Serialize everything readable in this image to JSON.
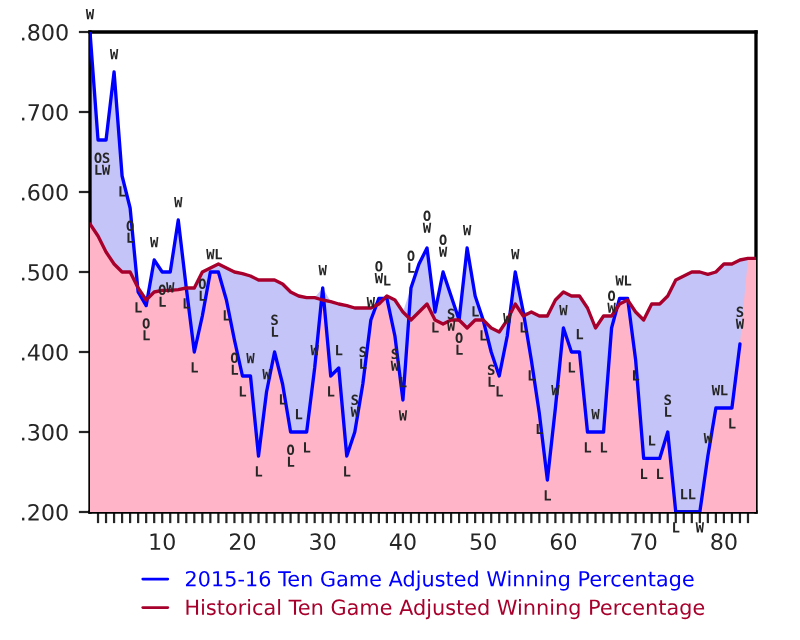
{
  "chart_data": {
    "type": "line",
    "x": [
      1,
      2,
      3,
      4,
      5,
      6,
      7,
      8,
      9,
      10,
      11,
      12,
      13,
      14,
      15,
      16,
      17,
      18,
      19,
      20,
      21,
      22,
      23,
      24,
      25,
      26,
      27,
      28,
      29,
      30,
      31,
      32,
      33,
      34,
      35,
      36,
      37,
      38,
      39,
      40,
      41,
      42,
      43,
      44,
      45,
      46,
      47,
      48,
      49,
      50,
      51,
      52,
      53,
      54,
      55,
      56,
      57,
      58,
      59,
      60,
      61,
      62,
      63,
      64,
      65,
      66,
      67,
      68,
      69,
      70,
      71,
      72,
      73,
      74,
      75,
      76,
      77,
      78,
      79,
      80,
      81,
      82,
      83,
      84
    ],
    "series": [
      {
        "type": "area",
        "color": "#c4c4f8",
        "values": [
          0.8,
          0.665,
          0.665,
          0.75,
          0.62,
          0.58,
          0.48,
          0.465,
          0.515,
          0.5,
          0.5,
          0.565,
          0.48,
          0.48,
          0.5,
          0.505,
          0.51,
          0.505,
          0.5,
          0.498,
          0.495,
          0.49,
          0.49,
          0.49,
          0.485,
          0.475,
          0.47,
          0.468,
          0.468,
          0.48,
          0.463,
          0.46,
          0.458,
          0.455,
          0.455,
          0.455,
          0.467,
          0.47,
          0.465,
          0.45,
          0.48,
          0.51,
          0.53,
          0.45,
          0.5,
          0.47,
          0.44,
          0.53,
          0.47,
          0.44,
          0.43,
          0.425,
          0.44,
          0.5,
          0.45,
          0.45,
          0.445,
          0.445,
          0.465,
          0.475,
          0.47,
          0.47,
          0.455,
          0.43,
          0.445,
          0.445,
          0.467,
          0.467,
          0.45,
          0.44,
          0.46,
          0.46,
          0.47,
          0.49,
          0.495,
          0.5,
          0.5,
          0.497,
          0.5,
          0.51,
          0.51,
          0.515,
          0.517,
          0.517
        ]
      },
      {
        "type": "area",
        "color": "#ffb4c8",
        "values": [
          0.56,
          0.545,
          0.525,
          0.51,
          0.5,
          0.5,
          0.475,
          0.458,
          0.475,
          0.477,
          0.477,
          0.478,
          0.48,
          0.4,
          0.445,
          0.5,
          0.5,
          0.465,
          0.415,
          0.37,
          0.37,
          0.27,
          0.35,
          0.4,
          0.36,
          0.3,
          0.3,
          0.3,
          0.38,
          0.465,
          0.37,
          0.38,
          0.27,
          0.3,
          0.36,
          0.44,
          0.46,
          0.467,
          0.42,
          0.34,
          0.44,
          0.45,
          0.46,
          0.44,
          0.435,
          0.44,
          0.44,
          0.43,
          0.44,
          0.44,
          0.4,
          0.37,
          0.42,
          0.46,
          0.445,
          0.39,
          0.323,
          0.24,
          0.33,
          0.43,
          0.4,
          0.4,
          0.3,
          0.3,
          0.3,
          0.43,
          0.46,
          0.465,
          0.39,
          0.267,
          0.267,
          0.267,
          0.3,
          0.2,
          0.2,
          0.2,
          0.2,
          0.27,
          0.33,
          0.33,
          0.33,
          0.41,
          0.517,
          0.517
        ]
      },
      {
        "name": "2015-16 Ten Game Adjusted Winning Percentage",
        "color": "#0000ff",
        "values": [
          0.8,
          0.665,
          0.665,
          0.75,
          0.62,
          0.58,
          0.475,
          0.458,
          0.515,
          0.5,
          0.5,
          0.565,
          0.48,
          0.4,
          0.445,
          0.5,
          0.5,
          0.465,
          0.415,
          0.37,
          0.37,
          0.27,
          0.35,
          0.4,
          0.36,
          0.3,
          0.3,
          0.3,
          0.38,
          0.48,
          0.37,
          0.38,
          0.27,
          0.3,
          0.36,
          0.44,
          0.467,
          0.467,
          0.42,
          0.34,
          0.48,
          0.51,
          0.53,
          0.45,
          0.5,
          0.47,
          0.44,
          0.53,
          0.47,
          0.44,
          0.4,
          0.37,
          0.42,
          0.5,
          0.45,
          0.39,
          0.323,
          0.24,
          0.33,
          0.43,
          0.4,
          0.4,
          0.3,
          0.3,
          0.3,
          0.43,
          0.467,
          0.467,
          0.39,
          0.267,
          0.267,
          0.267,
          0.3,
          0.2,
          0.2,
          0.2,
          0.2,
          0.27,
          0.33,
          0.33,
          0.33,
          0.41,
          null,
          null
        ]
      },
      {
        "name": "Historical Ten Game Adjusted Winning Percentage",
        "color": "#a8002c",
        "values": [
          0.56,
          0.545,
          0.525,
          0.51,
          0.5,
          0.5,
          0.48,
          0.465,
          0.475,
          0.477,
          0.477,
          0.478,
          0.48,
          0.48,
          0.5,
          0.505,
          0.51,
          0.505,
          0.5,
          0.498,
          0.495,
          0.49,
          0.49,
          0.49,
          0.485,
          0.475,
          0.47,
          0.468,
          0.468,
          0.465,
          0.463,
          0.46,
          0.458,
          0.455,
          0.455,
          0.455,
          0.46,
          0.47,
          0.465,
          0.45,
          0.44,
          0.45,
          0.46,
          0.44,
          0.435,
          0.44,
          0.44,
          0.43,
          0.44,
          0.44,
          0.43,
          0.425,
          0.44,
          0.46,
          0.445,
          0.45,
          0.445,
          0.445,
          0.465,
          0.475,
          0.47,
          0.47,
          0.455,
          0.43,
          0.445,
          0.445,
          0.46,
          0.465,
          0.45,
          0.44,
          0.46,
          0.46,
          0.47,
          0.49,
          0.495,
          0.5,
          0.5,
          0.497,
          0.5,
          0.51,
          0.51,
          0.515,
          0.517,
          0.517
        ]
      }
    ],
    "xlim": [
      1,
      84
    ],
    "xticks": [
      {
        "value": 2,
        "label": null
      },
      {
        "value": 3,
        "label": null
      },
      {
        "value": 4,
        "label": null
      },
      {
        "value": 5,
        "label": null
      },
      {
        "value": 6,
        "label": null
      },
      {
        "value": 7,
        "label": null
      },
      {
        "value": 8,
        "label": null
      },
      {
        "value": 9,
        "label": null
      },
      10,
      {
        "value": 11,
        "label": null
      },
      {
        "value": 12,
        "label": null
      },
      {
        "value": 13,
        "label": null
      },
      {
        "value": 14,
        "label": null
      },
      {
        "value": 15,
        "label": null
      },
      {
        "value": 16,
        "label": null
      },
      {
        "value": 17,
        "label": null
      },
      {
        "value": 18,
        "label": null
      },
      {
        "value": 19,
        "label": null
      },
      20,
      {
        "value": 21,
        "label": null
      },
      {
        "value": 22,
        "label": null
      },
      {
        "value": 23,
        "label": null
      },
      {
        "value": 24,
        "label": null
      },
      {
        "value": 25,
        "label": null
      },
      {
        "value": 26,
        "label": null
      },
      {
        "value": 27,
        "label": null
      },
      {
        "value": 28,
        "label": null
      },
      {
        "value": 29,
        "label": null
      },
      30,
      {
        "value": 31,
        "label": null
      },
      {
        "value": 32,
        "label": null
      },
      {
        "value": 33,
        "label": null
      },
      {
        "value": 34,
        "label": null
      },
      {
        "value": 35,
        "label": null
      },
      {
        "value": 36,
        "label": null
      },
      {
        "value": 37,
        "label": null
      },
      {
        "value": 38,
        "label": null
      },
      {
        "value": 39,
        "label": null
      },
      40,
      {
        "value": 41,
        "label": null
      },
      {
        "value": 42,
        "label": null
      },
      {
        "value": 43,
        "label": null
      },
      {
        "value": 44,
        "label": null
      },
      {
        "value": 45,
        "label": null
      },
      {
        "value": 46,
        "label": null
      },
      {
        "value": 47,
        "label": null
      },
      {
        "value": 48,
        "label": null
      },
      {
        "value": 49,
        "label": null
      },
      50,
      {
        "value": 51,
        "label": null
      },
      {
        "value": 52,
        "label": null
      },
      {
        "value": 53,
        "label": null
      },
      {
        "value": 54,
        "label": null
      },
      {
        "value": 55,
        "label": null
      },
      {
        "value": 56,
        "label": null
      },
      {
        "value": 57,
        "label": null
      },
      {
        "value": 58,
        "label": null
      },
      {
        "value": 59,
        "label": null
      },
      60,
      {
        "value": 61,
        "label": null
      },
      {
        "value": 62,
        "label": null
      },
      {
        "value": 63,
        "label": null
      },
      {
        "value": 64,
        "label": null
      },
      {
        "value": 65,
        "label": null
      },
      {
        "value": 66,
        "label": null
      },
      {
        "value": 67,
        "label": null
      },
      {
        "value": 68,
        "label": null
      },
      {
        "value": 69,
        "label": null
      },
      70,
      {
        "value": 71,
        "label": null
      },
      {
        "value": 72,
        "label": null
      },
      {
        "value": 73,
        "label": null
      },
      {
        "value": 74,
        "label": null
      },
      {
        "value": 75,
        "label": null
      },
      {
        "value": 76,
        "label": null
      },
      {
        "value": 77,
        "label": null
      },
      {
        "value": 78,
        "label": null
      },
      {
        "value": 79,
        "label": null
      },
      80,
      {
        "value": 81,
        "label": null
      },
      {
        "value": 82,
        "label": null
      },
      {
        "value": 83,
        "label": null
      }
    ],
    "ylim": [
      0.2,
      0.8
    ],
    "yticks": [
      {
        "value": 0.2,
        "label": ".200"
      },
      {
        "value": 0.3,
        "label": ".300"
      },
      {
        "value": 0.4,
        "label": ".400"
      },
      {
        "value": 0.5,
        "label": ".500"
      },
      {
        "value": 0.6,
        "label": ".600"
      },
      {
        "value": 0.7,
        "label": ".700"
      },
      {
        "value": 0.8,
        "label": ".800"
      }
    ],
    "legend": "bottom",
    "annotations": [
      {
        "text": "W",
        "x": 1,
        "y": 0.8
      },
      {
        "text": "O\nL",
        "x": 2,
        "y": 0.665
      },
      {
        "text": "S\nW",
        "x": 3,
        "y": 0.665
      },
      {
        "text": "W",
        "x": 4,
        "y": 0.75
      },
      {
        "text": "L",
        "x": 5,
        "y": 0.62
      },
      {
        "text": "O\nL",
        "x": 6,
        "y": 0.58
      },
      {
        "text": "L",
        "x": 7,
        "y": 0.475
      },
      {
        "text": "O\nL",
        "x": 8,
        "y": 0.458
      },
      {
        "text": "W",
        "x": 9,
        "y": 0.515
      },
      {
        "text": "O\nL",
        "x": 10,
        "y": 0.5
      },
      {
        "text": "W",
        "x": 11,
        "y": 0.5
      },
      {
        "text": "W",
        "x": 12,
        "y": 0.565
      },
      {
        "text": "L",
        "x": 13,
        "y": 0.48
      },
      {
        "text": "L",
        "x": 14,
        "y": 0.4
      },
      {
        "text": "O\nL",
        "x": 15,
        "y": 0.445
      },
      {
        "text": "W",
        "x": 16,
        "y": 0.5
      },
      {
        "text": "L",
        "x": 17,
        "y": 0.5
      },
      {
        "text": "L",
        "x": 18,
        "y": 0.465
      },
      {
        "text": "O\nL",
        "x": 19,
        "y": 0.415
      },
      {
        "text": "L",
        "x": 20,
        "y": 0.37
      },
      {
        "text": "W",
        "x": 21,
        "y": 0.37
      },
      {
        "text": "L",
        "x": 22,
        "y": 0.27
      },
      {
        "text": "W",
        "x": 23,
        "y": 0.35
      },
      {
        "text": "S\nL",
        "x": 24,
        "y": 0.4
      },
      {
        "text": "L",
        "x": 25,
        "y": 0.36
      },
      {
        "text": "O\nL",
        "x": 26,
        "y": 0.3
      },
      {
        "text": "L",
        "x": 27,
        "y": 0.3
      },
      {
        "text": "L",
        "x": 28,
        "y": 0.3
      },
      {
        "text": "W",
        "x": 29,
        "y": 0.38
      },
      {
        "text": "W",
        "x": 30,
        "y": 0.48
      },
      {
        "text": "L",
        "x": 31,
        "y": 0.37
      },
      {
        "text": "L",
        "x": 32,
        "y": 0.38
      },
      {
        "text": "L",
        "x": 33,
        "y": 0.27
      },
      {
        "text": "S\nW",
        "x": 34,
        "y": 0.3
      },
      {
        "text": "S\nL",
        "x": 35,
        "y": 0.36
      },
      {
        "text": "W",
        "x": 36,
        "y": 0.44
      },
      {
        "text": "O\nW",
        "x": 37,
        "y": 0.467
      },
      {
        "text": "L",
        "x": 38,
        "y": 0.467
      },
      {
        "text": "S\nW",
        "x": 39,
        "y": 0.42
      },
      {
        "text": "W",
        "x": 40,
        "y": 0.34
      },
      {
        "text": "L",
        "x": 40,
        "y": 0.34
      },
      {
        "text": "O\nL",
        "x": 41,
        "y": 0.48
      },
      {
        "text": "O\nW",
        "x": 43,
        "y": 0.53
      },
      {
        "text": "L",
        "x": 44,
        "y": 0.45
      },
      {
        "text": "O\nW",
        "x": 45,
        "y": 0.5
      },
      {
        "text": "S\nW",
        "x": 46,
        "y": 0.47
      },
      {
        "text": "O\nL",
        "x": 47,
        "y": 0.44
      },
      {
        "text": "W",
        "x": 48,
        "y": 0.53
      },
      {
        "text": "L",
        "x": 49,
        "y": 0.47
      },
      {
        "text": "L",
        "x": 50,
        "y": 0.44
      },
      {
        "text": "S\nL",
        "x": 51,
        "y": 0.4
      },
      {
        "text": "L",
        "x": 52,
        "y": 0.37
      },
      {
        "text": "W",
        "x": 53,
        "y": 0.42
      },
      {
        "text": "W",
        "x": 54,
        "y": 0.5
      },
      {
        "text": "L",
        "x": 55,
        "y": 0.45
      },
      {
        "text": "L",
        "x": 56,
        "y": 0.39
      },
      {
        "text": "L",
        "x": 57,
        "y": 0.323
      },
      {
        "text": "L",
        "x": 58,
        "y": 0.24
      },
      {
        "text": "W",
        "x": 59,
        "y": 0.33
      },
      {
        "text": "W",
        "x": 60,
        "y": 0.43
      },
      {
        "text": "L",
        "x": 61,
        "y": 0.4
      },
      {
        "text": "L",
        "x": 62,
        "y": 0.4
      },
      {
        "text": "L",
        "x": 63,
        "y": 0.3
      },
      {
        "text": "W",
        "x": 64,
        "y": 0.3
      },
      {
        "text": "L",
        "x": 65,
        "y": 0.3
      },
      {
        "text": "O\nW",
        "x": 66,
        "y": 0.43
      },
      {
        "text": "W",
        "x": 67,
        "y": 0.467
      },
      {
        "text": "L",
        "x": 68,
        "y": 0.467
      },
      {
        "text": "L",
        "x": 69,
        "y": 0.39
      },
      {
        "text": "L",
        "x": 70,
        "y": 0.267
      },
      {
        "text": "L",
        "x": 71,
        "y": 0.267
      },
      {
        "text": "L",
        "x": 72,
        "y": 0.267
      },
      {
        "text": "S\nL",
        "x": 73,
        "y": 0.3
      },
      {
        "text": "L",
        "x": 74,
        "y": 0.2
      },
      {
        "text": "L",
        "x": 75,
        "y": 0.2
      },
      {
        "text": "L",
        "x": 76,
        "y": 0.2
      },
      {
        "text": "W",
        "x": 77,
        "y": 0.2
      },
      {
        "text": "W",
        "x": 78,
        "y": 0.27
      },
      {
        "text": "W",
        "x": 79,
        "y": 0.33
      },
      {
        "text": "L",
        "x": 80,
        "y": 0.33
      },
      {
        "text": "L",
        "x": 81,
        "y": 0.33
      },
      {
        "text": "S\nW",
        "x": 82,
        "y": 0.41
      }
    ]
  }
}
